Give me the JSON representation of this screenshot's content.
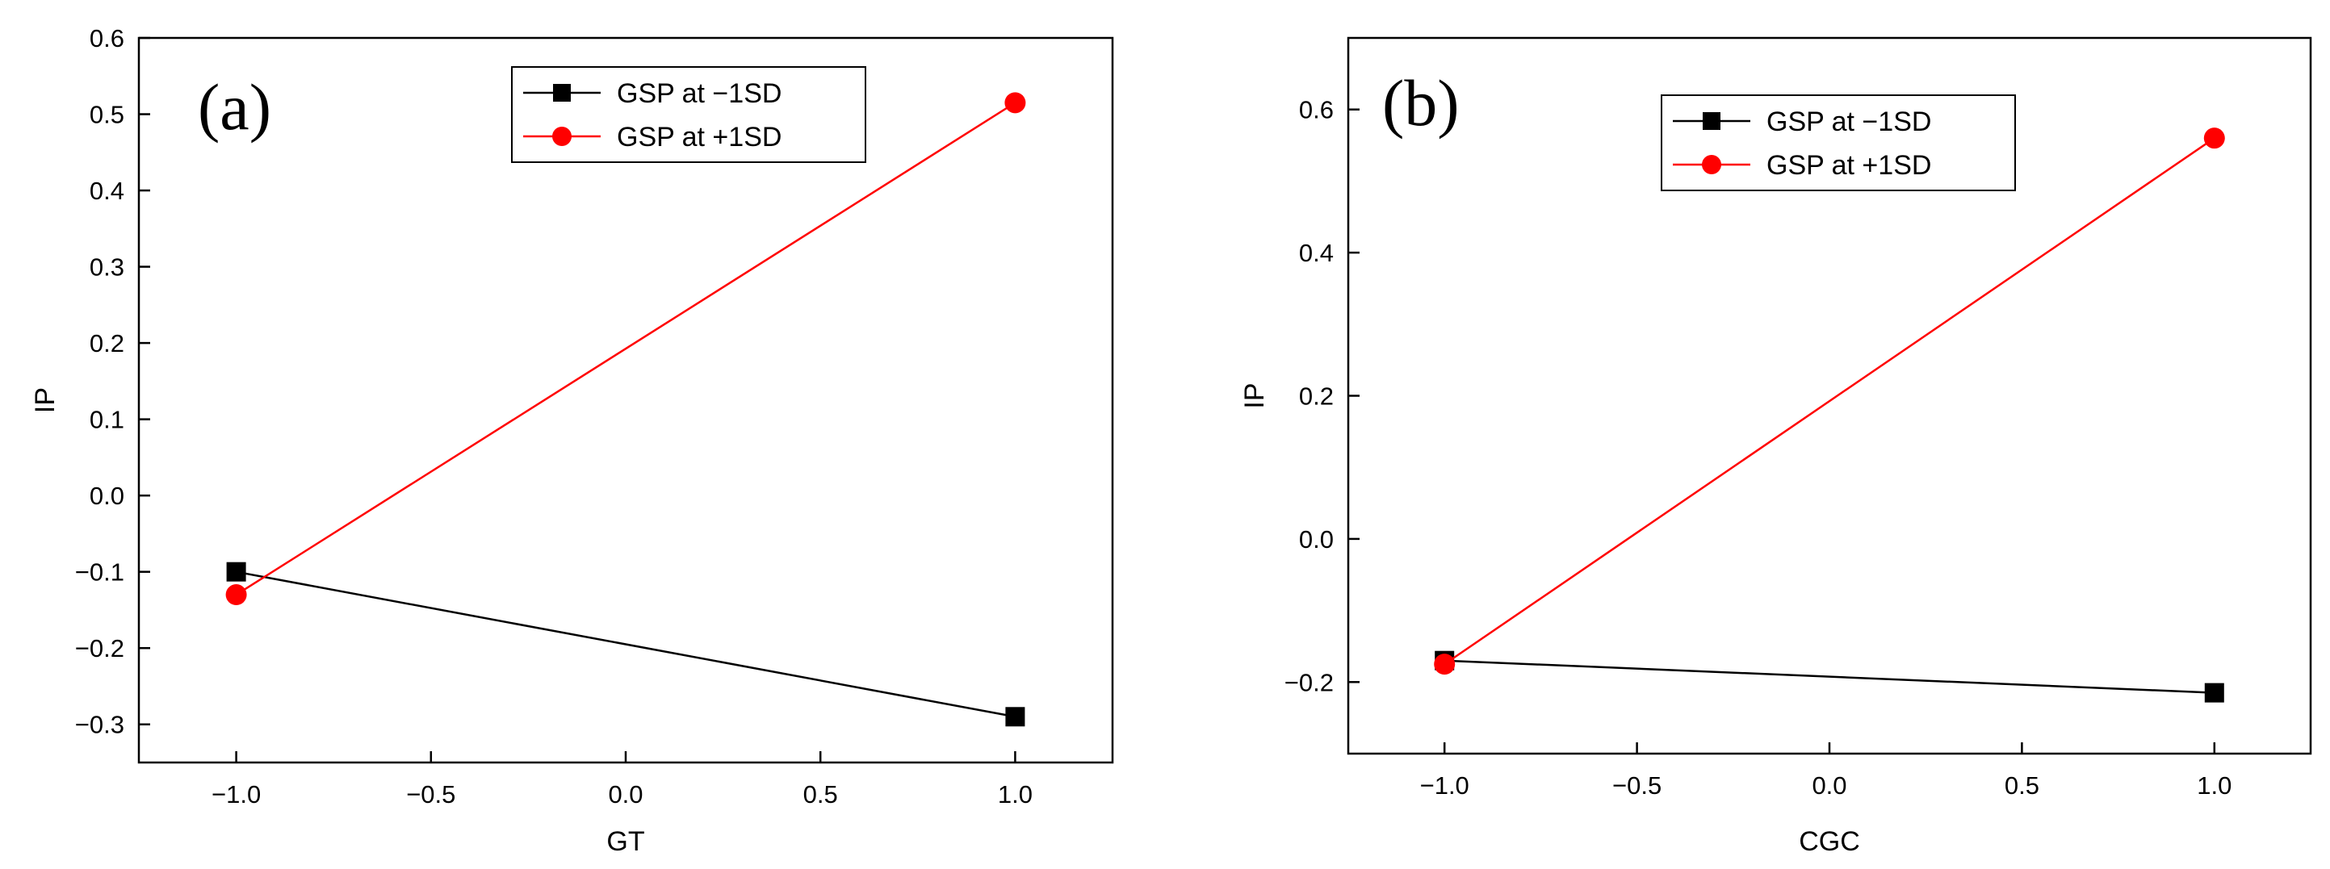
{
  "chart_data": [
    {
      "type": "line",
      "panel_label": "(a)",
      "xlabel": "GT",
      "ylabel": "IP",
      "xlim": [
        -1.25,
        1.25
      ],
      "ylim": [
        -0.35,
        0.6
      ],
      "x_ticks": [
        -1.0,
        -0.5,
        0.0,
        0.5,
        1.0
      ],
      "x_tick_labels": [
        "−1.0",
        "−0.5",
        "0.0",
        "0.5",
        "1.0"
      ],
      "y_ticks": [
        -0.3,
        -0.2,
        -0.1,
        0.0,
        0.1,
        0.2,
        0.3,
        0.4,
        0.5,
        0.6
      ],
      "y_tick_labels": [
        "−0.3",
        "−0.2",
        "−0.1",
        "0.0",
        "0.1",
        "0.2",
        "0.3",
        "0.4",
        "0.5",
        "0.6"
      ],
      "grid": false,
      "legend_position": "top-center",
      "x": [
        -1.0,
        1.0
      ],
      "series": [
        {
          "name": "GSP at −1SD",
          "values": [
            -0.1,
            -0.29
          ],
          "color": "#000000",
          "marker": "square"
        },
        {
          "name": "GSP at +1SD",
          "values": [
            -0.13,
            0.515
          ],
          "color": "#ff0000",
          "marker": "circle"
        }
      ]
    },
    {
      "type": "line",
      "panel_label": "(b)",
      "xlabel": "CGC",
      "ylabel": "IP",
      "xlim": [
        -1.25,
        1.25
      ],
      "ylim": [
        -0.3,
        0.7
      ],
      "x_ticks": [
        -1.0,
        -0.5,
        0.0,
        0.5,
        1.0
      ],
      "x_tick_labels": [
        "−1.0",
        "−0.5",
        "0.0",
        "0.5",
        "1.0"
      ],
      "y_ticks": [
        -0.2,
        0.0,
        0.2,
        0.4,
        0.6
      ],
      "y_tick_labels": [
        "−0.2",
        "0.0",
        "0.2",
        "0.4",
        "0.6"
      ],
      "grid": false,
      "legend_position": "top-center",
      "x": [
        -1.0,
        1.0
      ],
      "series": [
        {
          "name": "GSP at −1SD",
          "values": [
            -0.17,
            -0.215
          ],
          "color": "#000000",
          "marker": "square"
        },
        {
          "name": "GSP at +1SD",
          "values": [
            -0.175,
            0.56
          ],
          "color": "#ff0000",
          "marker": "circle"
        }
      ]
    }
  ]
}
